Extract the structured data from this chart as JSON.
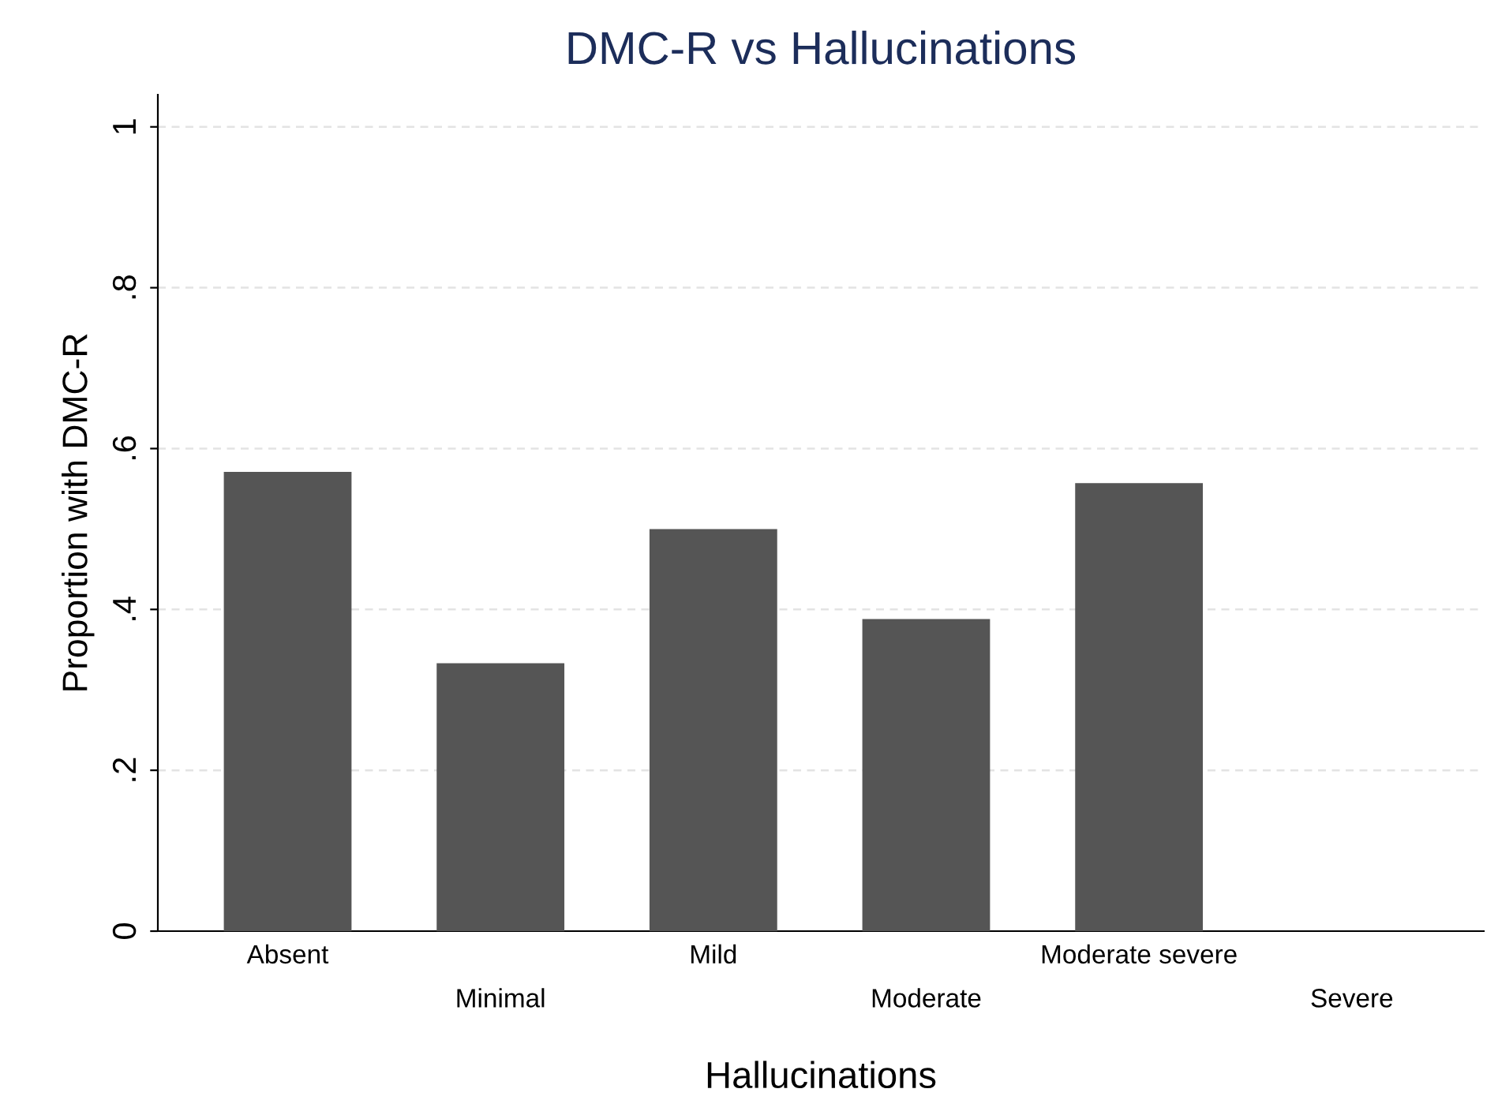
{
  "chart_data": {
    "type": "bar",
    "title": "DMC-R vs Hallucinations",
    "xlabel": "Hallucinations",
    "ylabel": "Proportion with DMC-R",
    "categories": [
      "Absent",
      "Minimal",
      "Mild",
      "Moderate",
      "Moderate severe",
      "Severe"
    ],
    "values": [
      0.571,
      0.333,
      0.5,
      0.388,
      0.557,
      0
    ],
    "color": "#555555",
    "ylim": [
      0,
      1.04
    ],
    "yticks": [
      {
        "value": 0,
        "label": "0"
      },
      {
        "value": 0.2,
        "label": ".2"
      },
      {
        "value": 0.4,
        "label": ".4"
      },
      {
        "value": 0.6,
        "label": ".6"
      },
      {
        "value": 0.8,
        "label": ".8"
      },
      {
        "value": 1,
        "label": "1"
      }
    ],
    "grid": "y",
    "legend": false
  }
}
